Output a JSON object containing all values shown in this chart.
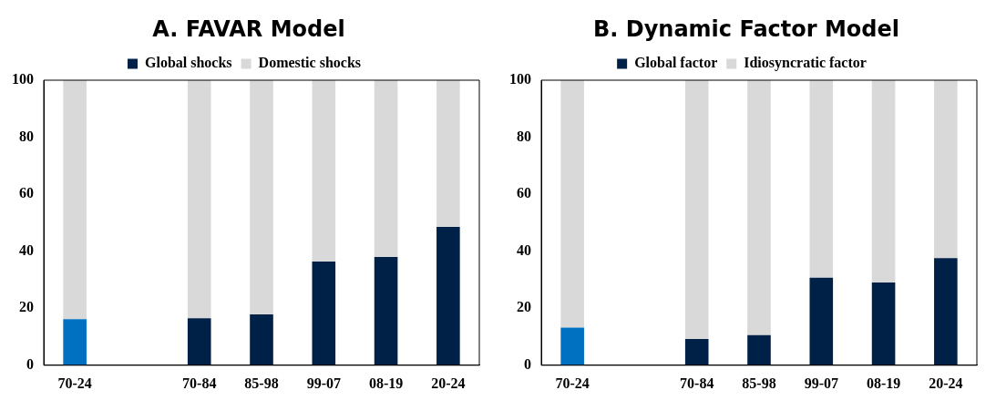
{
  "chart_data": [
    {
      "type": "bar",
      "title": "A.   FAVAR Model",
      "stacked": true,
      "categories": [
        "70-24",
        null,
        "70-84",
        "85-98",
        "99-07",
        "08-19",
        "20-24"
      ],
      "ylim": [
        0,
        100
      ],
      "yticks": [
        0,
        20,
        40,
        60,
        80,
        100
      ],
      "grid": false,
      "legend": "top",
      "series": [
        {
          "name": "Global shocks",
          "color": "#002147",
          "colors": [
            "#0070c0",
            null,
            "#002147",
            "#002147",
            "#002147",
            "#002147",
            "#002147"
          ],
          "values": [
            16.2,
            null,
            16.5,
            17.8,
            36.4,
            38,
            48.5
          ]
        },
        {
          "name": "Domestic shocks",
          "color": "#d9d9d9",
          "values": [
            83.8,
            null,
            83.5,
            82.2,
            63.6,
            62,
            51.5
          ]
        }
      ]
    },
    {
      "type": "bar",
      "title": "B.   Dynamic Factor Model",
      "stacked": true,
      "categories": [
        "70-24",
        null,
        "70-84",
        "85-98",
        "99-07",
        "08-19",
        "20-24"
      ],
      "ylim": [
        0,
        100
      ],
      "yticks": [
        0,
        20,
        40,
        60,
        80,
        100
      ],
      "grid": false,
      "legend": "top",
      "series": [
        {
          "name": "Global factor",
          "color": "#002147",
          "colors": [
            "#0070c0",
            null,
            "#002147",
            "#002147",
            "#002147",
            "#002147",
            "#002147"
          ],
          "values": [
            13.2,
            null,
            9.2,
            10.6,
            30.7,
            29,
            37.6
          ]
        },
        {
          "name": "Idiosyncratic factor",
          "color": "#d9d9d9",
          "values": [
            86.8,
            null,
            90.8,
            89.4,
            69.3,
            71,
            62.4
          ]
        }
      ]
    }
  ]
}
